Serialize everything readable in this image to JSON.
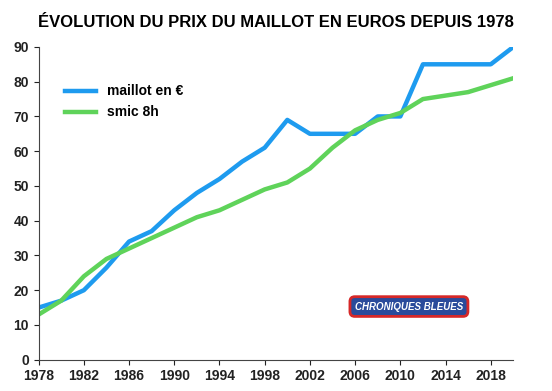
{
  "chart_data": {
    "type": "line",
    "title": "ÉVOLUTION DU PRIX DU MAILLOT EN EUROS DEPUIS 1978",
    "x": [
      1978,
      1980,
      1982,
      1984,
      1986,
      1988,
      1990,
      1992,
      1994,
      1996,
      1998,
      2000,
      2002,
      2004,
      2006,
      2008,
      2010,
      2012,
      2014,
      2016,
      2018,
      2020
    ],
    "series": [
      {
        "name": "maillot en €",
        "color": "#1e9bef",
        "values": [
          15,
          17,
          20,
          26.5,
          34,
          37,
          43,
          48,
          52,
          57,
          61,
          69,
          65,
          65,
          65,
          70,
          70,
          85,
          85,
          85,
          85,
          90
        ]
      },
      {
        "name": "smic 8h",
        "color": "#5fd35a",
        "values": [
          13,
          17,
          24,
          29,
          32,
          35,
          38,
          41,
          43,
          46,
          49,
          51,
          55,
          61,
          66,
          69,
          71,
          75,
          76,
          77,
          79,
          81
        ]
      }
    ],
    "xlim": [
      1978,
      2020
    ],
    "xticks": [
      1978,
      1982,
      1986,
      1990,
      1994,
      1998,
      2002,
      2006,
      2010,
      2014,
      2018
    ],
    "ylim": [
      0,
      90
    ],
    "yticks": [
      0,
      10,
      20,
      30,
      40,
      50,
      60,
      70,
      80,
      90
    ],
    "grid": false,
    "legend": "upper left",
    "annotations": [
      "CHRONIQUES BLEUES"
    ]
  }
}
